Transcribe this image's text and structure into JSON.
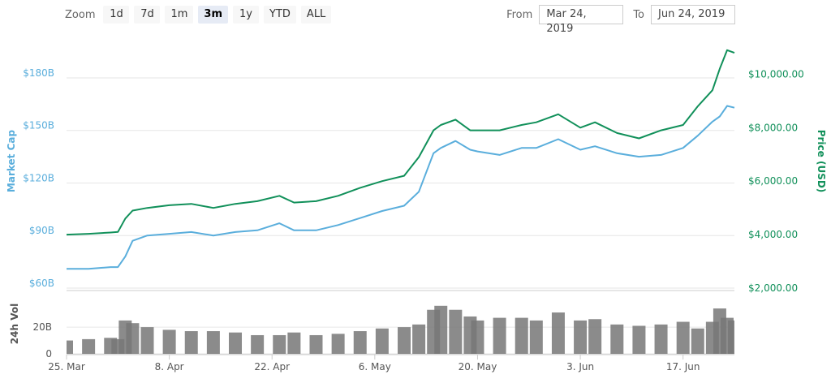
{
  "zoom": {
    "label": "Zoom",
    "buttons": [
      "1d",
      "7d",
      "1m",
      "3m",
      "1y",
      "YTD",
      "ALL"
    ],
    "active": "3m"
  },
  "range": {
    "from_label": "From",
    "from_value": "Mar 24, 2019",
    "to_label": "To",
    "to_value": "Jun 24, 2019"
  },
  "colors": {
    "market_cap": "#5aaedc",
    "price": "#11905a",
    "volume": "#777777",
    "grid": "#e6e6e6"
  },
  "chart_data": [
    {
      "type": "line",
      "x_tick_labels": [
        "25. Mar",
        "8. Apr",
        "22. Apr",
        "6. May",
        "20. May",
        "3. Jun",
        "17. Jun"
      ],
      "x_dates": [
        "2019-03-25",
        "2019-04-08",
        "2019-04-22",
        "2019-05-06",
        "2019-05-20",
        "2019-06-03",
        "2019-06-17"
      ],
      "x_range": [
        "2019-03-25",
        "2019-06-24"
      ],
      "y_left": {
        "label": "Market Cap",
        "ticks": [
          60,
          90,
          120,
          150,
          180
        ],
        "tick_labels": [
          "$60B",
          "$90B",
          "$120B",
          "$150B",
          "$180B"
        ],
        "range": [
          60,
          205
        ]
      },
      "y_right": {
        "label": "Price (USD)",
        "ticks": [
          2000,
          4000,
          6000,
          8000,
          10000
        ],
        "tick_labels": [
          "$2,000.00",
          "$4,000.00",
          "$6,000.00",
          "$8,000.00",
          "$10,000.00"
        ],
        "range": [
          2000,
          11500
        ]
      },
      "grid": true,
      "series": [
        {
          "axis": "left",
          "x": [
            "2019-03-25",
            "2019-03-28",
            "2019-03-31",
            "2019-04-01",
            "2019-04-02",
            "2019-04-03",
            "2019-04-05",
            "2019-04-08",
            "2019-04-11",
            "2019-04-14",
            "2019-04-17",
            "2019-04-20",
            "2019-04-23",
            "2019-04-25",
            "2019-04-28",
            "2019-05-01",
            "2019-05-04",
            "2019-05-07",
            "2019-05-10",
            "2019-05-12",
            "2019-05-14",
            "2019-05-15",
            "2019-05-17",
            "2019-05-19",
            "2019-05-20",
            "2019-05-23",
            "2019-05-26",
            "2019-05-28",
            "2019-05-31",
            "2019-06-03",
            "2019-06-05",
            "2019-06-08",
            "2019-06-11",
            "2019-06-14",
            "2019-06-17",
            "2019-06-19",
            "2019-06-21",
            "2019-06-22",
            "2019-06-23",
            "2019-06-24"
          ],
          "values": [
            71,
            71,
            72,
            72,
            78,
            87,
            90,
            91,
            92,
            90,
            92,
            93,
            97,
            93,
            93,
            96,
            100,
            104,
            107,
            115,
            137,
            140,
            144,
            139,
            138,
            136,
            140,
            140,
            145,
            139,
            141,
            137,
            135,
            136,
            140,
            147,
            155,
            158,
            164,
            163
          ]
        },
        {
          "axis": "right",
          "x": [
            "2019-03-25",
            "2019-03-28",
            "2019-03-31",
            "2019-04-01",
            "2019-04-02",
            "2019-04-03",
            "2019-04-05",
            "2019-04-08",
            "2019-04-11",
            "2019-04-14",
            "2019-04-17",
            "2019-04-20",
            "2019-04-23",
            "2019-04-25",
            "2019-04-28",
            "2019-05-01",
            "2019-05-04",
            "2019-05-07",
            "2019-05-10",
            "2019-05-12",
            "2019-05-14",
            "2019-05-15",
            "2019-05-17",
            "2019-05-19",
            "2019-05-20",
            "2019-05-23",
            "2019-05-26",
            "2019-05-28",
            "2019-05-31",
            "2019-06-03",
            "2019-06-05",
            "2019-06-08",
            "2019-06-11",
            "2019-06-14",
            "2019-06-17",
            "2019-06-19",
            "2019-06-21",
            "2019-06-22",
            "2019-06-23",
            "2019-06-24"
          ],
          "values": [
            4000,
            4030,
            4080,
            4100,
            4600,
            4900,
            5000,
            5100,
            5150,
            5000,
            5150,
            5250,
            5450,
            5200,
            5250,
            5450,
            5750,
            6000,
            6200,
            6900,
            7900,
            8100,
            8300,
            7900,
            7900,
            7900,
            8100,
            8200,
            8500,
            8000,
            8200,
            7800,
            7600,
            7900,
            8100,
            8800,
            9400,
            10200,
            10900,
            10800
          ]
        }
      ]
    },
    {
      "type": "bar",
      "y_label": "24h Vol",
      "y_ticks": [
        0,
        20
      ],
      "y_tick_labels": [
        "0",
        "20B"
      ],
      "y_range": [
        0,
        45
      ],
      "x": [
        "2019-03-25",
        "2019-03-28",
        "2019-03-31",
        "2019-04-01",
        "2019-04-02",
        "2019-04-03",
        "2019-04-05",
        "2019-04-08",
        "2019-04-11",
        "2019-04-14",
        "2019-04-17",
        "2019-04-20",
        "2019-04-23",
        "2019-04-25",
        "2019-04-28",
        "2019-05-01",
        "2019-05-04",
        "2019-05-07",
        "2019-05-10",
        "2019-05-12",
        "2019-05-14",
        "2019-05-15",
        "2019-05-17",
        "2019-05-19",
        "2019-05-20",
        "2019-05-23",
        "2019-05-26",
        "2019-05-28",
        "2019-05-31",
        "2019-06-03",
        "2019-06-05",
        "2019-06-08",
        "2019-06-11",
        "2019-06-14",
        "2019-06-17",
        "2019-06-19",
        "2019-06-21",
        "2019-06-22",
        "2019-06-23",
        "2019-06-24"
      ],
      "values": [
        10,
        11,
        12,
        11,
        25,
        23,
        20,
        18,
        17,
        17,
        16,
        14,
        14,
        16,
        14,
        15,
        17,
        19,
        20,
        22,
        33,
        36,
        33,
        28,
        25,
        27,
        27,
        25,
        31,
        25,
        26,
        22,
        21,
        22,
        24,
        19,
        24,
        34,
        27,
        25
      ]
    }
  ]
}
